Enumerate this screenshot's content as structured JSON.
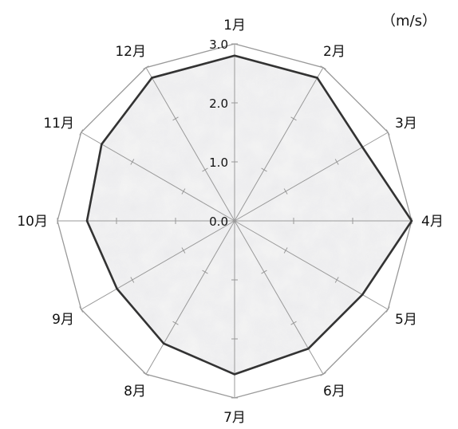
{
  "chart_data": {
    "type": "radar",
    "unit": "（m/s）",
    "categories": [
      "1月",
      "2月",
      "3月",
      "4月",
      "5月",
      "6月",
      "7月",
      "8月",
      "9月",
      "10月",
      "11月",
      "12月"
    ],
    "series": [
      {
        "values": [
          2.8,
          2.8,
          2.5,
          3.0,
          2.5,
          2.5,
          2.6,
          2.4,
          2.3,
          2.5,
          2.6,
          2.8
        ]
      }
    ],
    "rlim": [
      0,
      3.0
    ],
    "ticks": [
      0.0,
      1.0,
      2.0,
      3.0
    ],
    "tick_labels": [
      "0.0",
      "1.0",
      "2.0",
      "3.0"
    ],
    "grid": true,
    "colors": {
      "grid": "#999999",
      "series_line": "#333333",
      "fill_light": "#f4f4f4",
      "fill_dark": "#a9a9a9"
    }
  }
}
